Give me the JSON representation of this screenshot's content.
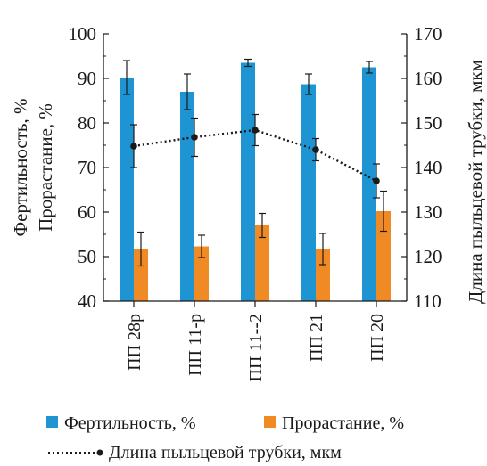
{
  "chart_data": {
    "type": "bar",
    "categories": [
      "ПП 28р",
      "ПП 11-р",
      "ПП 11--2",
      "ПП 21",
      "ПП 20"
    ],
    "series": [
      {
        "name": "Фертильность, %",
        "type": "bar",
        "axis": "left",
        "color": "#1f94d2",
        "values": [
          90.2,
          87.0,
          93.5,
          88.7,
          92.5
        ],
        "errors": [
          3.8,
          4.0,
          0.8,
          2.3,
          1.3
        ]
      },
      {
        "name": "Прорастание, %",
        "type": "bar",
        "axis": "left",
        "color": "#f08a24",
        "values": [
          51.7,
          52.3,
          57.0,
          51.7,
          60.2
        ],
        "errors": [
          3.8,
          2.5,
          2.7,
          3.5,
          4.5
        ]
      },
      {
        "name": "Длина пыльцевой трубки, мкм",
        "type": "line",
        "axis": "right",
        "color": "#1a1a1a",
        "values": [
          144.8,
          146.8,
          148.4,
          144.0,
          137.0
        ],
        "errors": [
          4.8,
          4.3,
          3.5,
          2.5,
          3.8
        ]
      }
    ],
    "y_left": {
      "label_lines": [
        "Фертильность, %",
        "Прорастание, %"
      ],
      "ylim": [
        40,
        100
      ],
      "ticks": [
        "40",
        "50",
        "60",
        "70",
        "80",
        "90",
        "100"
      ]
    },
    "y_right": {
      "label": "Длина пыльцевой трубки, мкм",
      "ylim": [
        110,
        170
      ],
      "ticks": [
        "110",
        "120",
        "130",
        "140",
        "150",
        "160",
        "170"
      ]
    },
    "grid": false,
    "legend_position": "bottom"
  }
}
